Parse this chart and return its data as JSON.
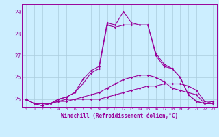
{
  "xlabel": "Windchill (Refroidissement éolien,°C)",
  "background_color": "#cceeff",
  "grid_color": "#aaccdd",
  "line_color": "#990099",
  "x_hours": [
    0,
    1,
    2,
    3,
    4,
    5,
    6,
    7,
    8,
    9,
    10,
    11,
    12,
    13,
    14,
    15,
    16,
    17,
    18,
    19,
    20,
    21,
    22,
    23
  ],
  "series1": [
    25.0,
    24.8,
    24.8,
    24.8,
    24.9,
    24.9,
    25.0,
    25.0,
    25.0,
    25.0,
    25.1,
    25.2,
    25.3,
    25.4,
    25.5,
    25.6,
    25.6,
    25.7,
    25.7,
    25.7,
    25.6,
    25.4,
    24.9,
    24.9
  ],
  "series2": [
    25.0,
    24.8,
    24.8,
    24.8,
    24.9,
    25.0,
    25.0,
    25.1,
    25.2,
    25.3,
    25.5,
    25.7,
    25.9,
    26.0,
    26.1,
    26.1,
    26.0,
    25.8,
    25.5,
    25.4,
    25.3,
    25.2,
    24.8,
    24.9
  ],
  "series3": [
    25.0,
    24.8,
    24.7,
    24.8,
    25.0,
    25.1,
    25.3,
    25.7,
    26.2,
    26.4,
    28.4,
    28.3,
    28.4,
    28.4,
    28.4,
    28.4,
    27.0,
    26.5,
    26.4,
    26.0,
    25.2,
    24.9,
    24.8,
    24.8
  ],
  "series4": [
    25.0,
    24.8,
    24.7,
    24.8,
    25.0,
    25.1,
    25.3,
    25.9,
    26.3,
    26.5,
    28.5,
    28.4,
    29.0,
    28.5,
    28.4,
    28.4,
    27.1,
    26.6,
    26.4,
    26.0,
    25.2,
    24.9,
    24.8,
    24.8
  ],
  "ylim": [
    24.65,
    29.35
  ],
  "yticks": [
    25,
    26,
    27,
    28,
    29
  ]
}
